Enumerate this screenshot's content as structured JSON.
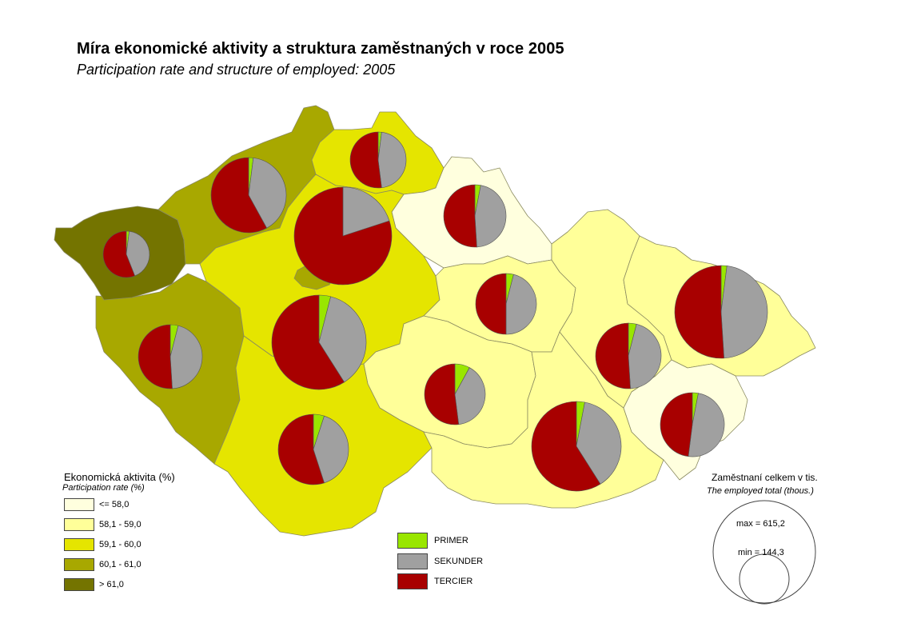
{
  "title": "Míra ekonomické aktivity a struktura zaměstnaných v roce 2005",
  "subtitle": "Participation rate and structure of employed: 2005",
  "participation_legend": {
    "title": "Ekonomická aktivita (%)",
    "subtitle": "Participation rate (%)",
    "classes": [
      {
        "label": "<= 58,0",
        "color": "#ffffde"
      },
      {
        "label": "58,1 - 59,0",
        "color": "#ffff99"
      },
      {
        "label": "59,1 - 60,0",
        "color": "#e5e500"
      },
      {
        "label": "60,1 - 61,0",
        "color": "#a8a800"
      },
      {
        "label": "> 61,0",
        "color": "#747400"
      }
    ]
  },
  "sector_legend": [
    {
      "label": "PRIMER",
      "color": "#99e600"
    },
    {
      "label": "SEKUNDER",
      "color": "#a0a0a0"
    },
    {
      "label": "TERCIER",
      "color": "#a80000"
    }
  ],
  "size_legend": {
    "title": "Zaměstnaní celkem v tis.",
    "subtitle": "The employed total (thous.)",
    "max_label": "max = 615,2",
    "min_label": "min = 144,3"
  },
  "chart_data": {
    "type": "pie",
    "note_units": "shares of employed by sector (primary, secondary, tertiary); participation class index into participation_legend.classes",
    "regions": [
      {
        "id": "karlovarsky",
        "participation_class": 4,
        "primer": 0.02,
        "sekunder": 0.42,
        "tercier": 0.56
      },
      {
        "id": "ustecky",
        "participation_class": 3,
        "primer": 0.02,
        "sekunder": 0.4,
        "tercier": 0.58
      },
      {
        "id": "liberecky",
        "participation_class": 2,
        "primer": 0.02,
        "sekunder": 0.46,
        "tercier": 0.52
      },
      {
        "id": "praha",
        "participation_class": 3,
        "primer": 0.0,
        "sekunder": 0.2,
        "tercier": 0.8
      },
      {
        "id": "kralovehradecky",
        "participation_class": 0,
        "primer": 0.03,
        "sekunder": 0.46,
        "tercier": 0.51
      },
      {
        "id": "plzensky",
        "participation_class": 3,
        "primer": 0.04,
        "sekunder": 0.45,
        "tercier": 0.51
      },
      {
        "id": "stredocesky",
        "participation_class": 2,
        "primer": 0.04,
        "sekunder": 0.37,
        "tercier": 0.59
      },
      {
        "id": "pardubicky",
        "participation_class": 1,
        "primer": 0.04,
        "sekunder": 0.46,
        "tercier": 0.5
      },
      {
        "id": "vysocina",
        "participation_class": 1,
        "primer": 0.08,
        "sekunder": 0.4,
        "tercier": 0.52
      },
      {
        "id": "jihocesky",
        "participation_class": 2,
        "primer": 0.05,
        "sekunder": 0.4,
        "tercier": 0.55
      },
      {
        "id": "olomoucky",
        "participation_class": 1,
        "primer": 0.04,
        "sekunder": 0.45,
        "tercier": 0.51
      },
      {
        "id": "moravskoslezsky",
        "participation_class": 1,
        "primer": 0.02,
        "sekunder": 0.47,
        "tercier": 0.51
      },
      {
        "id": "jihomoravsky",
        "participation_class": 1,
        "primer": 0.03,
        "sekunder": 0.38,
        "tercier": 0.59
      },
      {
        "id": "zlinsky",
        "participation_class": 0,
        "primer": 0.03,
        "sekunder": 0.49,
        "tercier": 0.48
      }
    ]
  }
}
